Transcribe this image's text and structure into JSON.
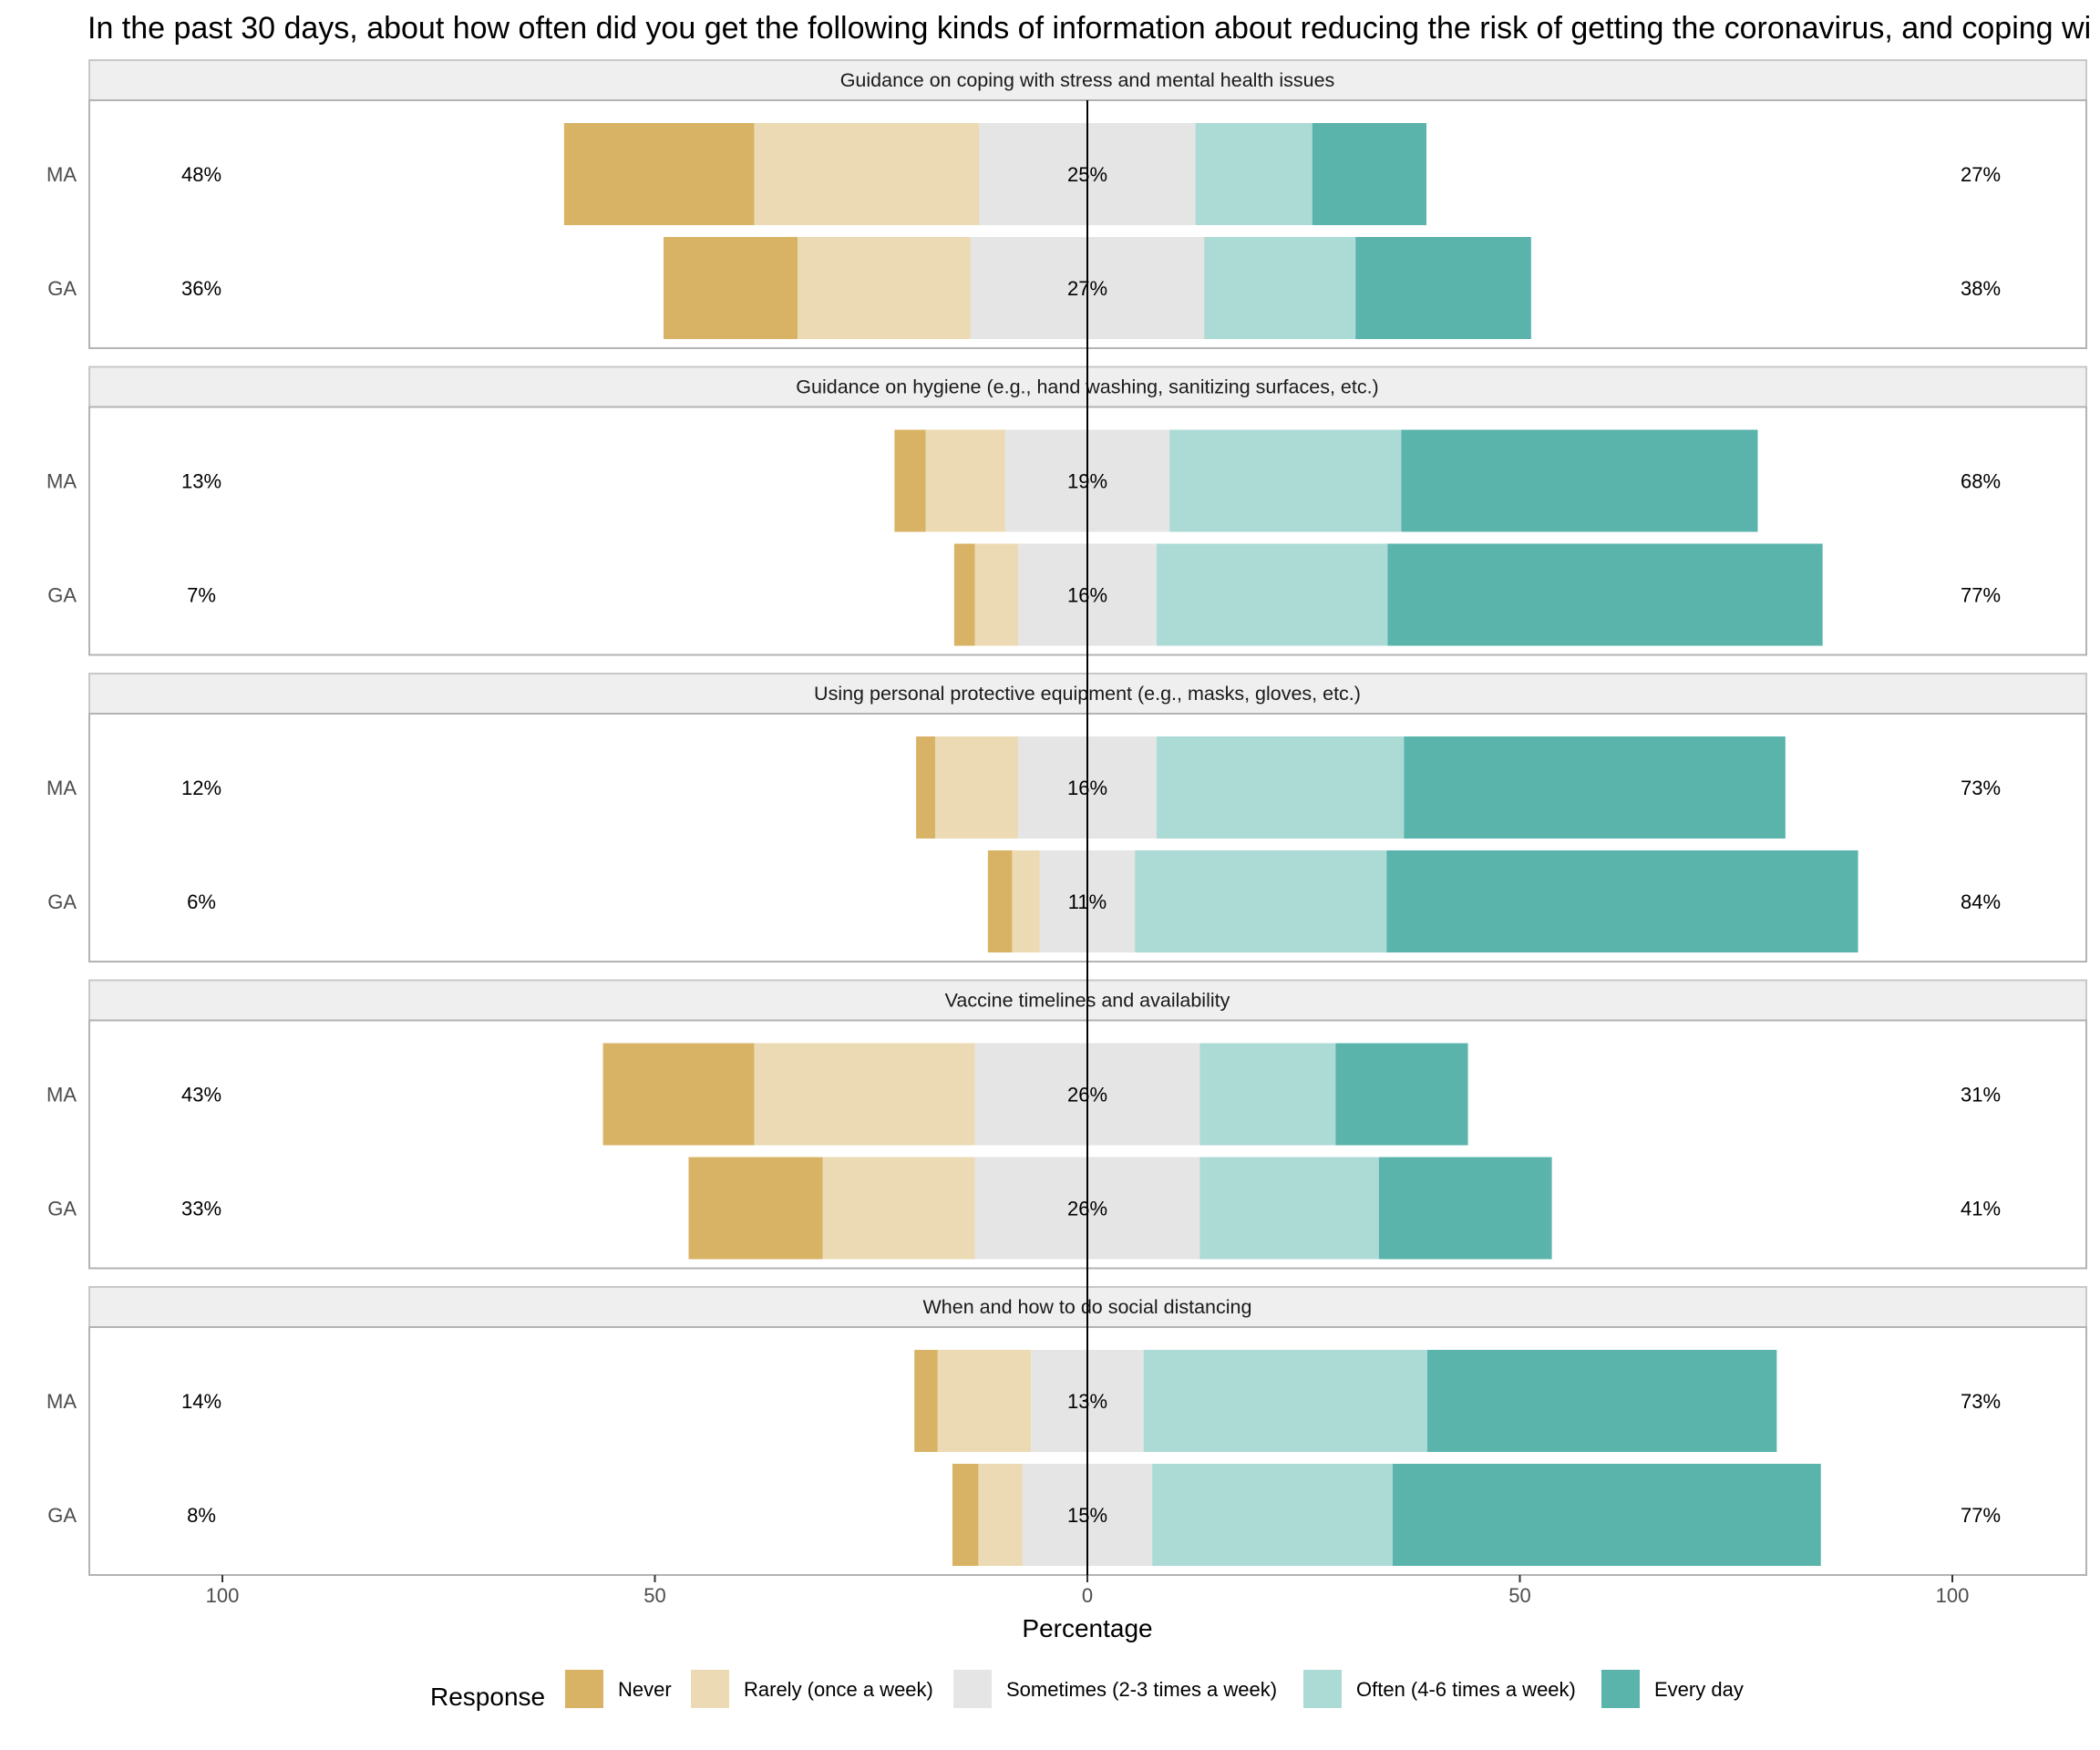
{
  "title": "In the past 30 days, about how often did you get the following kinds of information about reducing the risk of getting the coronavirus, and coping wi",
  "chart_data": {
    "type": "bar",
    "orientation": "horizontal",
    "layout": "diverging stacked bars, faceted",
    "xlabel": "Percentage",
    "xlim": [
      -115,
      115
    ],
    "x_ticks": [
      -100,
      -50,
      0,
      50,
      100
    ],
    "x_tick_labels": [
      "100",
      "50",
      "0",
      "50",
      "100"
    ],
    "grid": false,
    "legend_position": "bottom",
    "legend_title": "Response",
    "responses": [
      "Never",
      "Rarely (once a week)",
      "Sometimes (2-3 times a week)",
      "Often (4-6 times a week)",
      "Every day"
    ],
    "colors": [
      "#d8b365",
      "#ebdab3",
      "#e5e5e5",
      "#acdad5",
      "#5ab4ac"
    ],
    "groups": [
      "MA",
      "GA"
    ],
    "facets": [
      {
        "title": "Guidance on coping with stress and mental health issues",
        "rows": [
          {
            "group": "MA",
            "values": [
              22,
              26,
              25,
              13.5,
              13.2
            ],
            "left_label": "48%",
            "center_label": "25%",
            "right_label": "27%"
          },
          {
            "group": "GA",
            "values": [
              15.5,
              20,
              27,
              17.5,
              20.3
            ],
            "left_label": "36%",
            "center_label": "27%",
            "right_label": "38%"
          }
        ]
      },
      {
        "title": "Guidance on hygiene (e.g., hand washing, sanitizing surfaces, etc.)",
        "rows": [
          {
            "group": "MA",
            "values": [
              3.6,
              9.2,
              19,
              26.8,
              41.2
            ],
            "left_label": "13%",
            "center_label": "19%",
            "right_label": "68%"
          },
          {
            "group": "GA",
            "values": [
              2.4,
              5,
              16,
              26.7,
              50.3
            ],
            "left_label": "7%",
            "center_label": "16%",
            "right_label": "77%"
          }
        ]
      },
      {
        "title": "Using personal protective equipment (e.g., masks, gloves, etc.)",
        "rows": [
          {
            "group": "MA",
            "values": [
              2.2,
              9.6,
              16,
              28.6,
              44.1
            ],
            "left_label": "12%",
            "center_label": "16%",
            "right_label": "73%"
          },
          {
            "group": "GA",
            "values": [
              2.8,
              3.2,
              11,
              29.1,
              54.5
            ],
            "left_label": "6%",
            "center_label": "11%",
            "right_label": "84%"
          }
        ]
      },
      {
        "title": "Vaccine timelines and availability",
        "rows": [
          {
            "group": "MA",
            "values": [
              17.5,
              25.5,
              26,
              15.7,
              15.3
            ],
            "left_label": "43%",
            "center_label": "26%",
            "right_label": "31%"
          },
          {
            "group": "GA",
            "values": [
              15.5,
              17.6,
              26,
              20.7,
              20
            ],
            "left_label": "33%",
            "center_label": "26%",
            "right_label": "41%"
          }
        ]
      },
      {
        "title": "When and how to do social distancing",
        "rows": [
          {
            "group": "MA",
            "values": [
              2.7,
              10.8,
              13,
              32.8,
              40.4
            ],
            "left_label": "14%",
            "center_label": "13%",
            "right_label": "73%"
          },
          {
            "group": "GA",
            "values": [
              3,
              5.1,
              15,
              27.8,
              49.5
            ],
            "left_label": "8%",
            "center_label": "15%",
            "right_label": "77%"
          }
        ]
      }
    ]
  }
}
